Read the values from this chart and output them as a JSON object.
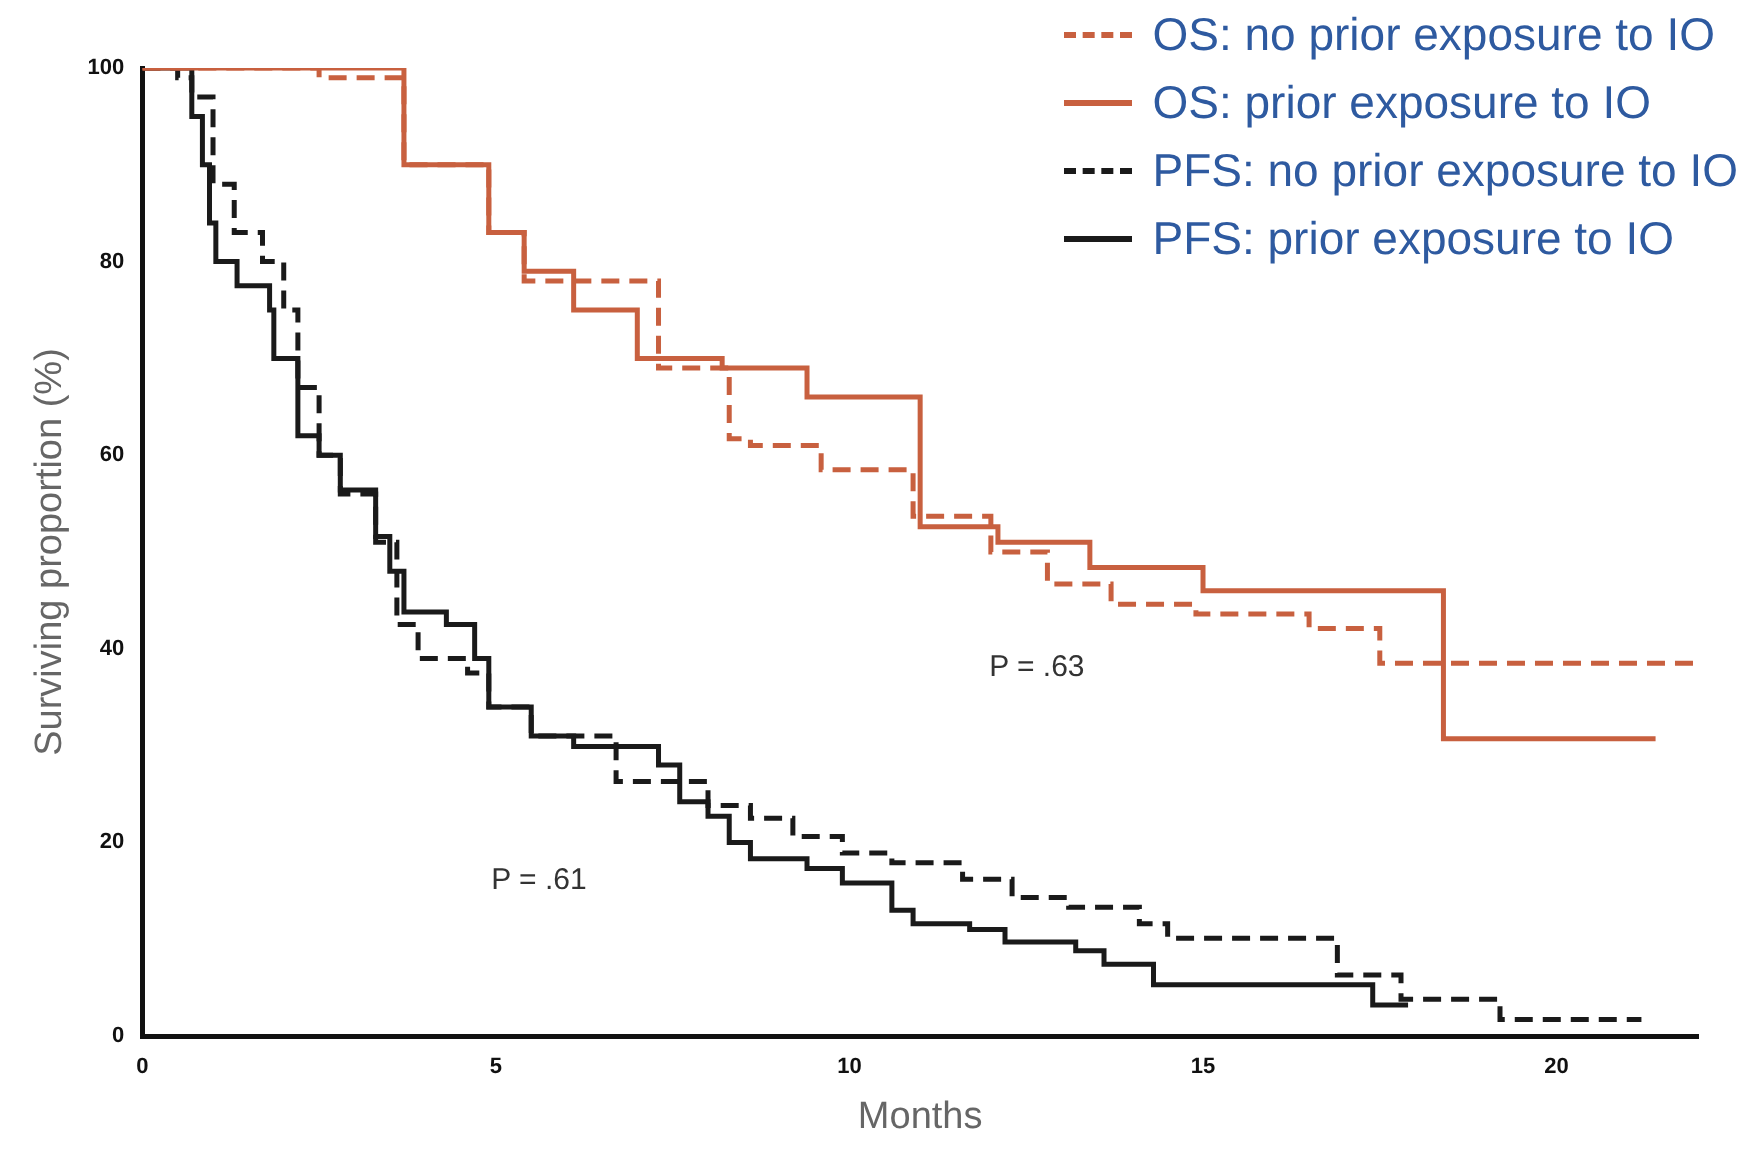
{
  "chart_data": {
    "type": "step",
    "xlabel": "Months",
    "ylabel": "Surviving proportion (%)",
    "xlim": [
      0,
      22
    ],
    "ylim": [
      0,
      100
    ],
    "xticks": [
      0,
      5,
      10,
      15,
      20
    ],
    "yticks": [
      0,
      20,
      40,
      60,
      80,
      100
    ],
    "grid": false,
    "legend": "top right",
    "marker": "none",
    "annotations": [
      "P = .63",
      "P = .61"
    ],
    "series": [
      {
        "name": "OS: no prior exposure to IO",
        "color": "#c8603f",
        "line_style": "dashed",
        "x": [
          0,
          2.0,
          2.5,
          3.7,
          4.9,
          5.4,
          7.3,
          8.3,
          8.6,
          9.6,
          10.9,
          12.0,
          12.8,
          13.7,
          14.9,
          16.5,
          17.5,
          22.0
        ],
        "values": [
          100,
          100,
          99,
          90,
          83,
          78,
          69,
          61.7,
          61,
          58.5,
          53.7,
          50,
          46.7,
          44.6,
          43.6,
          42.1,
          38.5,
          38.5
        ]
      },
      {
        "name": "OS: prior exposure to IO",
        "color": "#c8603f",
        "line_style": "solid",
        "x": [
          0,
          2.5,
          3.7,
          4.9,
          5.4,
          6.1,
          7.0,
          8.2,
          9.4,
          11.0,
          12.1,
          13.4,
          15.0,
          18.4,
          21.4
        ],
        "values": [
          100,
          100,
          90,
          83,
          79,
          75,
          70,
          69,
          66,
          52.6,
          51,
          48.4,
          46,
          30.7,
          30.7
        ]
      },
      {
        "name": "PFS: no prior exposure to IO",
        "color": "#1a1a1a",
        "line_style": "dashed",
        "x": [
          0,
          0.5,
          0.7,
          1.0,
          1.3,
          1.7,
          2.0,
          2.2,
          2.5,
          2.8,
          3.3,
          3.6,
          3.9,
          4.6,
          4.9,
          5.5,
          6.7,
          8.0,
          8.6,
          9.2,
          9.9,
          10.6,
          11.6,
          12.3,
          13.1,
          14.1,
          14.5,
          16.9,
          17.8,
          19.2,
          21.2
        ],
        "values": [
          100,
          99,
          97,
          88,
          83,
          80,
          75,
          67,
          60,
          56,
          51,
          42.5,
          39,
          37.5,
          34,
          31,
          26.3,
          23.8,
          22.5,
          20.6,
          18.9,
          17.9,
          16.2,
          14.3,
          13.3,
          11.6,
          10.1,
          6.3,
          3.8,
          1.7,
          1.7
        ]
      },
      {
        "name": "PFS: prior exposure to IO",
        "color": "#1a1a1a",
        "line_style": "solid",
        "x": [
          0,
          0.7,
          0.85,
          0.95,
          1.04,
          1.34,
          1.8,
          1.86,
          2.2,
          2.5,
          2.8,
          3.3,
          3.5,
          3.7,
          4.3,
          4.7,
          4.9,
          5.5,
          6.1,
          7.3,
          7.6,
          8.0,
          8.3,
          8.6,
          9.4,
          9.9,
          10.6,
          10.9,
          11.7,
          12.2,
          13.2,
          13.6,
          14.3,
          17.4,
          17.9
        ],
        "values": [
          100,
          95,
          90,
          84,
          80,
          77.5,
          75,
          70,
          62,
          60,
          56.4,
          51.6,
          48,
          43.8,
          42.5,
          39,
          34,
          31,
          29.9,
          28,
          24.2,
          22.7,
          20,
          18.3,
          17.3,
          15.8,
          13,
          11.6,
          11,
          9.7,
          8.8,
          7.4,
          5.3,
          3.2,
          3.2
        ]
      }
    ]
  }
}
